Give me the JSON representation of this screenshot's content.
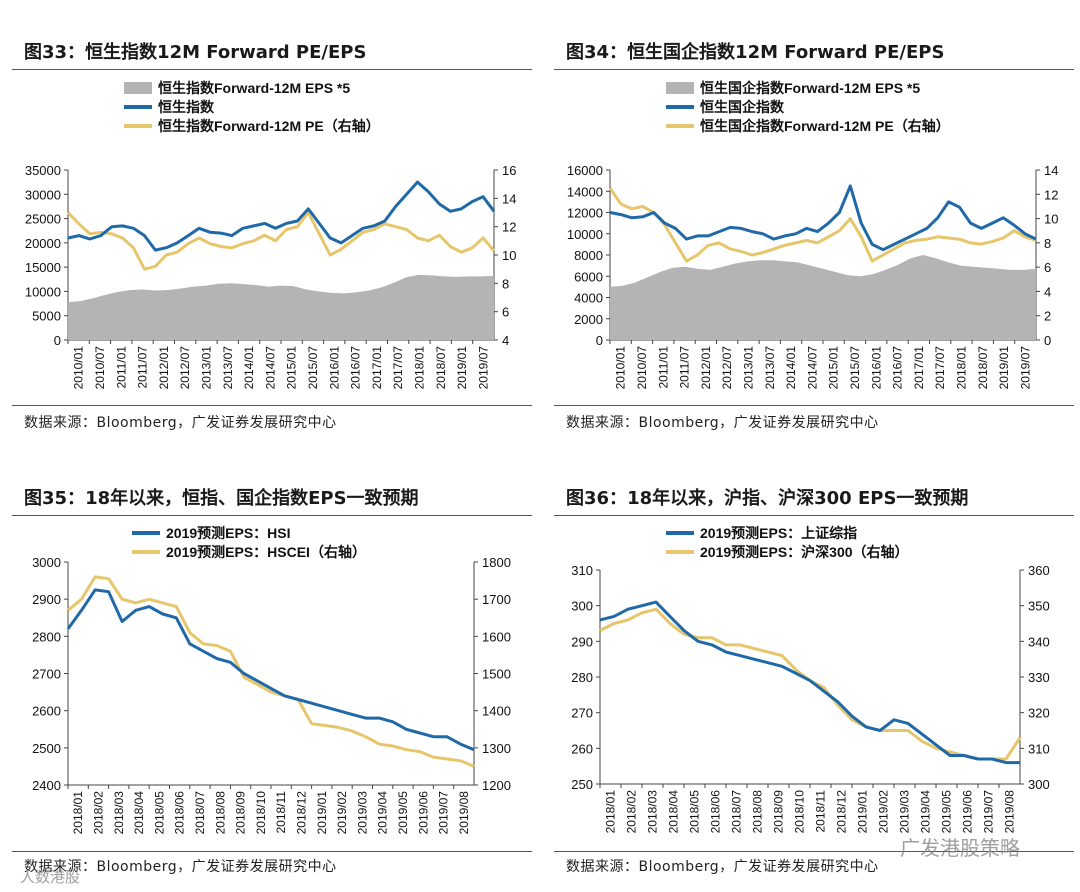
{
  "colors": {
    "blue": "#1F69A8",
    "gold": "#E7C66B",
    "gray": "#B4B4B4",
    "axis": "#444444"
  },
  "source_text": "数据来源：Bloomberg，广发证券发展研究中心",
  "watermarks": {
    "left": "人数港股",
    "right": "广发港股策略"
  },
  "chart_data": [
    {
      "id": "fig33",
      "type": "line+area",
      "title_prefix": "图33：",
      "title": "恒生指数12M Forward PE/EPS",
      "legend": [
        "恒生指数Forward-12M EPS *5",
        "恒生指数",
        "恒生指数Forward-12M PE（右轴）"
      ],
      "ylim_left": [
        0,
        35000
      ],
      "yticks_left": [
        0,
        5000,
        10000,
        15000,
        20000,
        25000,
        30000,
        35000
      ],
      "ylim_right": [
        4,
        16
      ],
      "yticks_right": [
        4,
        6,
        8,
        10,
        12,
        14,
        16
      ],
      "xlabels": [
        "2010/01",
        "2010/07",
        "2011/01",
        "2011/07",
        "2012/01",
        "2012/07",
        "2013/01",
        "2013/07",
        "2014/01",
        "2014/07",
        "2015/01",
        "2015/07",
        "2016/01",
        "2016/07",
        "2017/01",
        "2017/07",
        "2018/01",
        "2018/07",
        "2019/01",
        "2019/07"
      ],
      "area_eps": [
        7800,
        8000,
        8600,
        9300,
        9900,
        10300,
        10400,
        10200,
        10300,
        10600,
        11000,
        11200,
        11600,
        11700,
        11500,
        11300,
        11000,
        11200,
        11100,
        10400,
        10000,
        9700,
        9600,
        9800,
        10200,
        10800,
        11800,
        12900,
        13400,
        13300,
        13100,
        13000,
        13100,
        13100,
        13200
      ],
      "index": [
        21000,
        21500,
        20800,
        21500,
        23300,
        23500,
        23000,
        21500,
        18500,
        19000,
        20000,
        21500,
        23000,
        22200,
        22000,
        21500,
        23000,
        23500,
        24000,
        23000,
        24000,
        24500,
        27000,
        24000,
        21000,
        20000,
        21500,
        23000,
        23500,
        24500,
        27500,
        30000,
        32500,
        30500,
        28000,
        26500,
        27000,
        28500,
        29500,
        26500
      ],
      "pe": [
        13,
        12.2,
        11.5,
        11.6,
        11.5,
        11.2,
        10.5,
        9,
        9.2,
        10,
        10.2,
        10.8,
        11.2,
        10.8,
        10.6,
        10.5,
        10.8,
        11,
        11.4,
        11,
        11.8,
        12,
        13,
        11.5,
        10,
        10.4,
        11,
        11.6,
        11.8,
        12.2,
        12,
        11.8,
        11.2,
        11,
        11.4,
        10.6,
        10.2,
        10.5,
        11.2,
        10.3
      ]
    },
    {
      "id": "fig34",
      "type": "line+area",
      "title_prefix": "图34：",
      "title": "恒生国企指数12M Forward PE/EPS",
      "legend": [
        "恒生国企指数Forward-12M EPS *5",
        "恒生国企指数",
        "恒生国企指数Forward-12M PE（右轴）"
      ],
      "ylim_left": [
        0,
        16000
      ],
      "yticks_left": [
        0,
        2000,
        4000,
        6000,
        8000,
        10000,
        12000,
        14000,
        16000
      ],
      "ylim_right": [
        0,
        14
      ],
      "yticks_right": [
        0,
        2,
        4,
        6,
        8,
        10,
        12,
        14
      ],
      "xlabels": [
        "2010/01",
        "2010/07",
        "2011/01",
        "2011/07",
        "2012/01",
        "2012/07",
        "2013/01",
        "2013/07",
        "2014/01",
        "2014/07",
        "2015/01",
        "2015/07",
        "2016/01",
        "2016/07",
        "2017/01",
        "2017/07",
        "2018/01",
        "2018/07",
        "2019/01",
        "2019/07"
      ],
      "area_eps": [
        5000,
        5100,
        5400,
        5900,
        6400,
        6800,
        6900,
        6700,
        6600,
        6900,
        7200,
        7400,
        7500,
        7500,
        7400,
        7300,
        7000,
        6700,
        6400,
        6100,
        6000,
        6200,
        6600,
        7100,
        7700,
        8000,
        7700,
        7300,
        7000,
        6900,
        6800,
        6700,
        6600,
        6600,
        6700
      ],
      "index": [
        12000,
        11800,
        11500,
        11600,
        12000,
        11000,
        10500,
        9500,
        9800,
        9800,
        10200,
        10600,
        10500,
        10200,
        10000,
        9500,
        9800,
        10000,
        10500,
        10200,
        11000,
        12000,
        14500,
        11000,
        9000,
        8500,
        9000,
        9500,
        10000,
        10500,
        11500,
        13000,
        12500,
        11000,
        10500,
        11000,
        11500,
        10800,
        10000,
        9500
      ],
      "pe": [
        12.5,
        11.2,
        10.8,
        11,
        10.5,
        9.5,
        8,
        6.5,
        7,
        7.8,
        8,
        7.5,
        7.3,
        7,
        7.2,
        7.5,
        7.8,
        8,
        8.2,
        8,
        8.5,
        9,
        10,
        8.5,
        6.5,
        7,
        7.5,
        8,
        8.2,
        8.3,
        8.5,
        8.4,
        8.3,
        8,
        7.9,
        8.1,
        8.4,
        9,
        8.5,
        8.2
      ]
    },
    {
      "id": "fig35",
      "type": "line",
      "title_prefix": "图35：",
      "title": "18年以来，恒指、国企指数EPS一致预期",
      "legend": [
        "2019预测EPS：HSI",
        "2019预测EPS：HSCEI（右轴）"
      ],
      "ylim_left": [
        2400,
        3000
      ],
      "yticks_left": [
        2400,
        2500,
        2600,
        2700,
        2800,
        2900,
        3000
      ],
      "ylim_right": [
        1200,
        1800
      ],
      "yticks_right": [
        1200,
        1300,
        1400,
        1500,
        1600,
        1700,
        1800
      ],
      "xlabels": [
        "2018/01",
        "2018/02",
        "2018/03",
        "2018/04",
        "2018/05",
        "2018/06",
        "2018/07",
        "2018/08",
        "2018/09",
        "2018/10",
        "2018/11",
        "2018/12",
        "2019/01",
        "2019/02",
        "2019/03",
        "2019/04",
        "2019/05",
        "2019/06",
        "2019/07",
        "2019/08"
      ],
      "hsi": [
        2820,
        2870,
        2925,
        2920,
        2840,
        2870,
        2880,
        2860,
        2850,
        2780,
        2760,
        2740,
        2730,
        2700,
        2680,
        2660,
        2640,
        2630,
        2620,
        2610,
        2600,
        2590,
        2580,
        2580,
        2570,
        2550,
        2540,
        2530,
        2530,
        2510,
        2495
      ],
      "hscei": [
        1670,
        1700,
        1760,
        1755,
        1700,
        1690,
        1700,
        1690,
        1680,
        1610,
        1580,
        1575,
        1560,
        1490,
        1470,
        1450,
        1440,
        1430,
        1365,
        1360,
        1355,
        1345,
        1330,
        1310,
        1305,
        1295,
        1290,
        1275,
        1270,
        1265,
        1250
      ]
    },
    {
      "id": "fig36",
      "type": "line",
      "title_prefix": "图36：",
      "title": "18年以来，沪指、沪深300 EPS一致预期",
      "legend": [
        "2019预测EPS：上证综指",
        "2019预测EPS：沪深300（右轴）"
      ],
      "ylim_left": [
        250,
        310
      ],
      "yticks_left": [
        250,
        260,
        270,
        280,
        290,
        300,
        310
      ],
      "ylim_right": [
        300,
        360
      ],
      "yticks_right": [
        300,
        310,
        320,
        330,
        340,
        350,
        360
      ],
      "xlabels": [
        "2018/01",
        "2018/02",
        "2018/03",
        "2018/04",
        "2018/05",
        "2018/06",
        "2018/07",
        "2018/08",
        "2018/09",
        "2018/10",
        "2018/11",
        "2018/12",
        "2019/01",
        "2019/02",
        "2019/03",
        "2019/04",
        "2019/05",
        "2019/06",
        "2019/07",
        "2019/08"
      ],
      "shcomp": [
        296,
        297,
        299,
        300,
        301,
        297,
        293,
        290,
        289,
        287,
        286,
        285,
        284,
        283,
        281,
        279,
        276,
        273,
        269,
        266,
        265,
        268,
        267,
        264,
        261,
        258,
        258,
        257,
        257,
        256,
        256
      ],
      "hs300": [
        343,
        345,
        346,
        348,
        349,
        345,
        342,
        341,
        341,
        339,
        339,
        338,
        337,
        336,
        332,
        329,
        327,
        322,
        318,
        316,
        315,
        315,
        315,
        312,
        310,
        309,
        308,
        307,
        307,
        307,
        313
      ]
    }
  ]
}
